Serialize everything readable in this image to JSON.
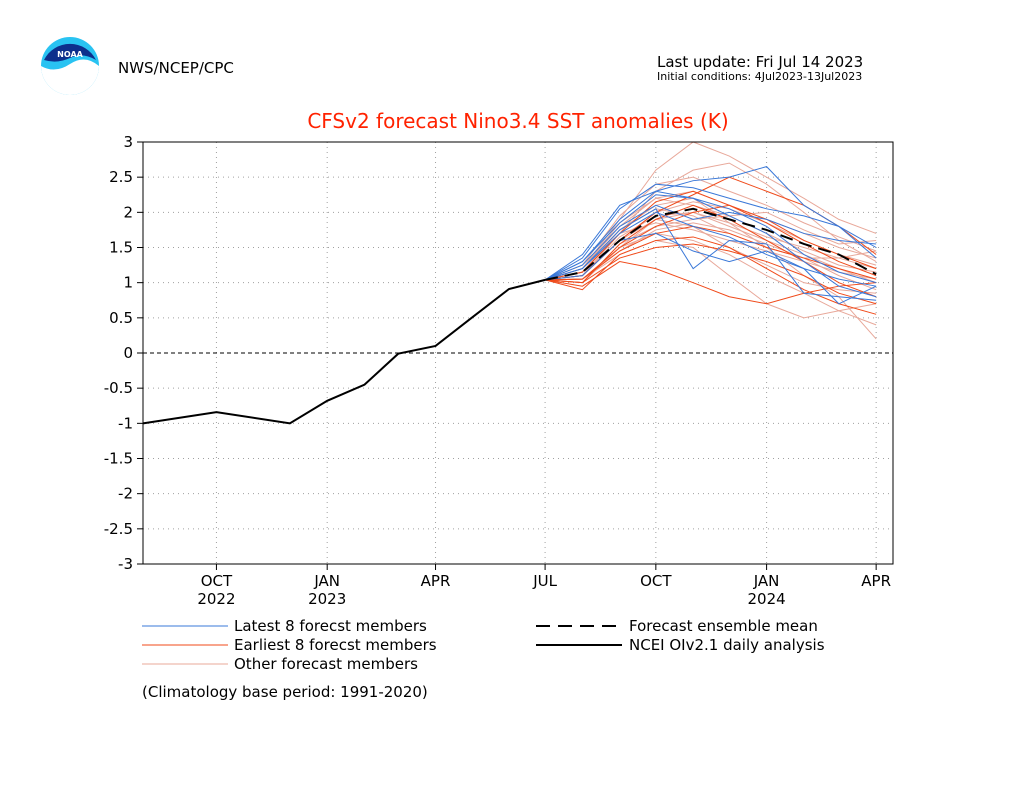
{
  "header": {
    "agency": "NWS/NCEP/CPC",
    "logo_text": "NOAA",
    "last_update": "Last update: Fri Jul 14 2023",
    "initial_conditions": "Initial conditions: 4Jul2023-13Jul2023"
  },
  "footnote": "(Climatology base period: 1991-2020)",
  "colors": {
    "latest": "#3a78d8",
    "earliest": "#f04a1a",
    "other": "#e8a89a",
    "mean": "#000000",
    "analysis": "#000000",
    "title": "#ff2200"
  },
  "chart_data": {
    "type": "line",
    "title": "CFSv2 forecast Nino3.4 SST anomalies (K)",
    "xlabel": "",
    "ylabel": "",
    "x_range": [
      "2022-08-01",
      "2024-04-15"
    ],
    "ylim": [
      -3,
      3
    ],
    "y_ticks": [
      -3,
      -2.5,
      -2,
      -1.5,
      -1,
      -0.5,
      0,
      0.5,
      1,
      1.5,
      2,
      2.5,
      3
    ],
    "y_tick_labels": [
      "-3",
      "-2.5",
      "-2",
      "-1.5",
      "-1",
      "-0.5",
      "0",
      "0.5",
      "1",
      "1.5",
      "2",
      "2.5",
      "3"
    ],
    "x_ticks": [
      {
        "date": "2022-10-01",
        "label": "OCT",
        "year": "2022"
      },
      {
        "date": "2023-01-01",
        "label": "JAN",
        "year": "2023"
      },
      {
        "date": "2023-04-01",
        "label": "APR",
        "year": ""
      },
      {
        "date": "2023-07-01",
        "label": "JUL",
        "year": ""
      },
      {
        "date": "2023-10-01",
        "label": "OCT",
        "year": ""
      },
      {
        "date": "2024-01-01",
        "label": "JAN",
        "year": "2024"
      },
      {
        "date": "2024-04-01",
        "label": "APR",
        "year": ""
      }
    ],
    "grid": true,
    "zero_line": "dashed",
    "legend_entries": [
      {
        "key": "latest",
        "label": "Latest 8 forecst members",
        "style": "solid"
      },
      {
        "key": "earliest",
        "label": "Earliest 8 forecst members",
        "style": "solid"
      },
      {
        "key": "other",
        "label": "Other forecast members",
        "style": "solid"
      },
      {
        "key": "mean",
        "label": "Forecast ensemble mean",
        "style": "dashed"
      },
      {
        "key": "analysis",
        "label": "NCEI OIv2.1 daily analysis",
        "style": "solid"
      }
    ],
    "forecast_x": [
      "2023-07-01",
      "2023-08-01",
      "2023-09-01",
      "2023-10-01",
      "2023-11-01",
      "2023-12-01",
      "2024-01-01",
      "2024-02-01",
      "2024-03-01",
      "2024-04-01"
    ],
    "series": [
      {
        "key": "analysis",
        "x": [
          "2022-08-01",
          "2022-10-01",
          "2022-12-01",
          "2023-01-01",
          "2023-02-01",
          "2023-03-01",
          "2023-04-01",
          "2023-05-01",
          "2023-06-01",
          "2023-07-01"
        ],
        "values": [
          -1.0,
          -0.84,
          -1.0,
          -0.68,
          -0.45,
          -0.01,
          0.1,
          0.5,
          0.91,
          1.04
        ]
      },
      {
        "key": "mean",
        "x": [
          "2023-07-01",
          "2023-08-01",
          "2023-09-01",
          "2023-10-01",
          "2023-11-01",
          "2023-12-01",
          "2024-01-01",
          "2024-02-01",
          "2024-03-01",
          "2024-04-01"
        ],
        "values": [
          1.04,
          1.15,
          1.6,
          1.95,
          2.05,
          1.9,
          1.75,
          1.55,
          1.4,
          1.12
        ]
      }
    ],
    "members": {
      "latest": [
        [
          1.04,
          1.35,
          2.05,
          2.4,
          2.35,
          2.2,
          2.05,
          1.95,
          1.8,
          1.5
        ],
        [
          1.04,
          1.3,
          1.9,
          2.3,
          2.45,
          2.5,
          2.65,
          2.1,
          1.8,
          1.35
        ],
        [
          1.04,
          1.25,
          1.8,
          2.1,
          1.9,
          2.0,
          1.9,
          1.7,
          1.6,
          1.55
        ],
        [
          1.04,
          1.2,
          1.7,
          2.0,
          1.8,
          1.65,
          1.4,
          1.2,
          1.05,
          0.95
        ],
        [
          1.04,
          1.3,
          1.85,
          2.25,
          2.2,
          1.95,
          1.7,
          1.3,
          0.95,
          0.8
        ],
        [
          1.04,
          1.1,
          1.6,
          1.7,
          1.45,
          1.3,
          1.45,
          1.2,
          0.7,
          0.95
        ],
        [
          1.04,
          1.4,
          2.1,
          2.3,
          2.2,
          2.05,
          1.8,
          1.4,
          1.15,
          1.0
        ],
        [
          1.04,
          1.2,
          1.75,
          2.05,
          1.2,
          1.6,
          1.55,
          0.85,
          0.8,
          0.75
        ]
      ],
      "earliest": [
        [
          1.04,
          1.0,
          1.35,
          1.5,
          1.55,
          1.45,
          1.3,
          1.1,
          0.85,
          0.7
        ],
        [
          1.04,
          0.95,
          1.3,
          1.2,
          1.0,
          0.8,
          0.7,
          0.85,
          0.95,
          1.0
        ],
        [
          1.04,
          1.05,
          1.5,
          1.8,
          2.0,
          2.1,
          1.9,
          1.6,
          1.4,
          1.2
        ],
        [
          1.04,
          1.1,
          1.6,
          2.0,
          2.25,
          2.5,
          2.3,
          2.1,
          1.8,
          1.4
        ],
        [
          1.04,
          0.9,
          1.4,
          1.6,
          1.65,
          1.5,
          1.2,
          0.9,
          0.7,
          0.55
        ],
        [
          1.04,
          1.0,
          1.55,
          1.9,
          2.1,
          1.9,
          1.6,
          1.3,
          1.0,
          0.8
        ],
        [
          1.04,
          1.05,
          1.45,
          1.7,
          1.8,
          1.7,
          1.5,
          1.35,
          1.2,
          1.05
        ],
        [
          1.04,
          1.15,
          1.7,
          2.15,
          2.3,
          2.1,
          1.85,
          1.55,
          1.3,
          1.1
        ]
      ],
      "other": [
        [
          1.04,
          1.2,
          1.9,
          2.6,
          3.0,
          2.8,
          2.5,
          2.2,
          1.9,
          1.7
        ],
        [
          1.04,
          1.1,
          1.7,
          2.3,
          2.6,
          2.7,
          2.4,
          2.0,
          1.6,
          1.3
        ],
        [
          1.04,
          1.0,
          1.5,
          1.7,
          1.6,
          1.4,
          1.1,
          0.85,
          0.6,
          0.4
        ],
        [
          1.04,
          1.15,
          1.75,
          2.1,
          2.2,
          1.85,
          1.5,
          1.1,
          0.8,
          0.2
        ],
        [
          1.04,
          1.1,
          1.6,
          1.9,
          1.8,
          1.5,
          1.25,
          1.0,
          0.9,
          0.85
        ],
        [
          1.04,
          1.2,
          1.8,
          2.2,
          2.3,
          2.1,
          1.9,
          1.7,
          1.5,
          1.35
        ],
        [
          1.04,
          1.05,
          1.4,
          1.6,
          1.5,
          1.1,
          0.7,
          0.5,
          0.6,
          0.7
        ],
        [
          1.04,
          1.25,
          1.95,
          2.4,
          2.5,
          2.3,
          2.1,
          1.85,
          1.65,
          1.45
        ],
        [
          1.04,
          1.1,
          1.65,
          1.95,
          2.0,
          1.8,
          1.6,
          1.4,
          1.2,
          1.0
        ],
        [
          1.04,
          1.15,
          1.7,
          1.85,
          1.75,
          1.6,
          1.45,
          1.3,
          1.15,
          1.05
        ],
        [
          1.04,
          1.0,
          1.55,
          1.8,
          1.9,
          1.95,
          1.7,
          1.45,
          1.25,
          1.15
        ],
        [
          1.04,
          1.2,
          1.85,
          2.2,
          2.1,
          1.95,
          2.0,
          1.75,
          1.55,
          1.6
        ],
        [
          1.04,
          1.05,
          1.45,
          1.75,
          1.85,
          1.75,
          1.55,
          1.35,
          1.1,
          0.9
        ],
        [
          1.04,
          1.1,
          1.6,
          2.0,
          2.15,
          2.05,
          1.85,
          1.6,
          1.4,
          1.25
        ],
        [
          1.04,
          1.15,
          1.75,
          2.05,
          1.95,
          1.7,
          1.5,
          1.35,
          1.35,
          1.45
        ],
        [
          1.04,
          1.0,
          1.5,
          1.9,
          2.0,
          1.85,
          1.65,
          1.5,
          1.35,
          1.2
        ]
      ]
    }
  }
}
